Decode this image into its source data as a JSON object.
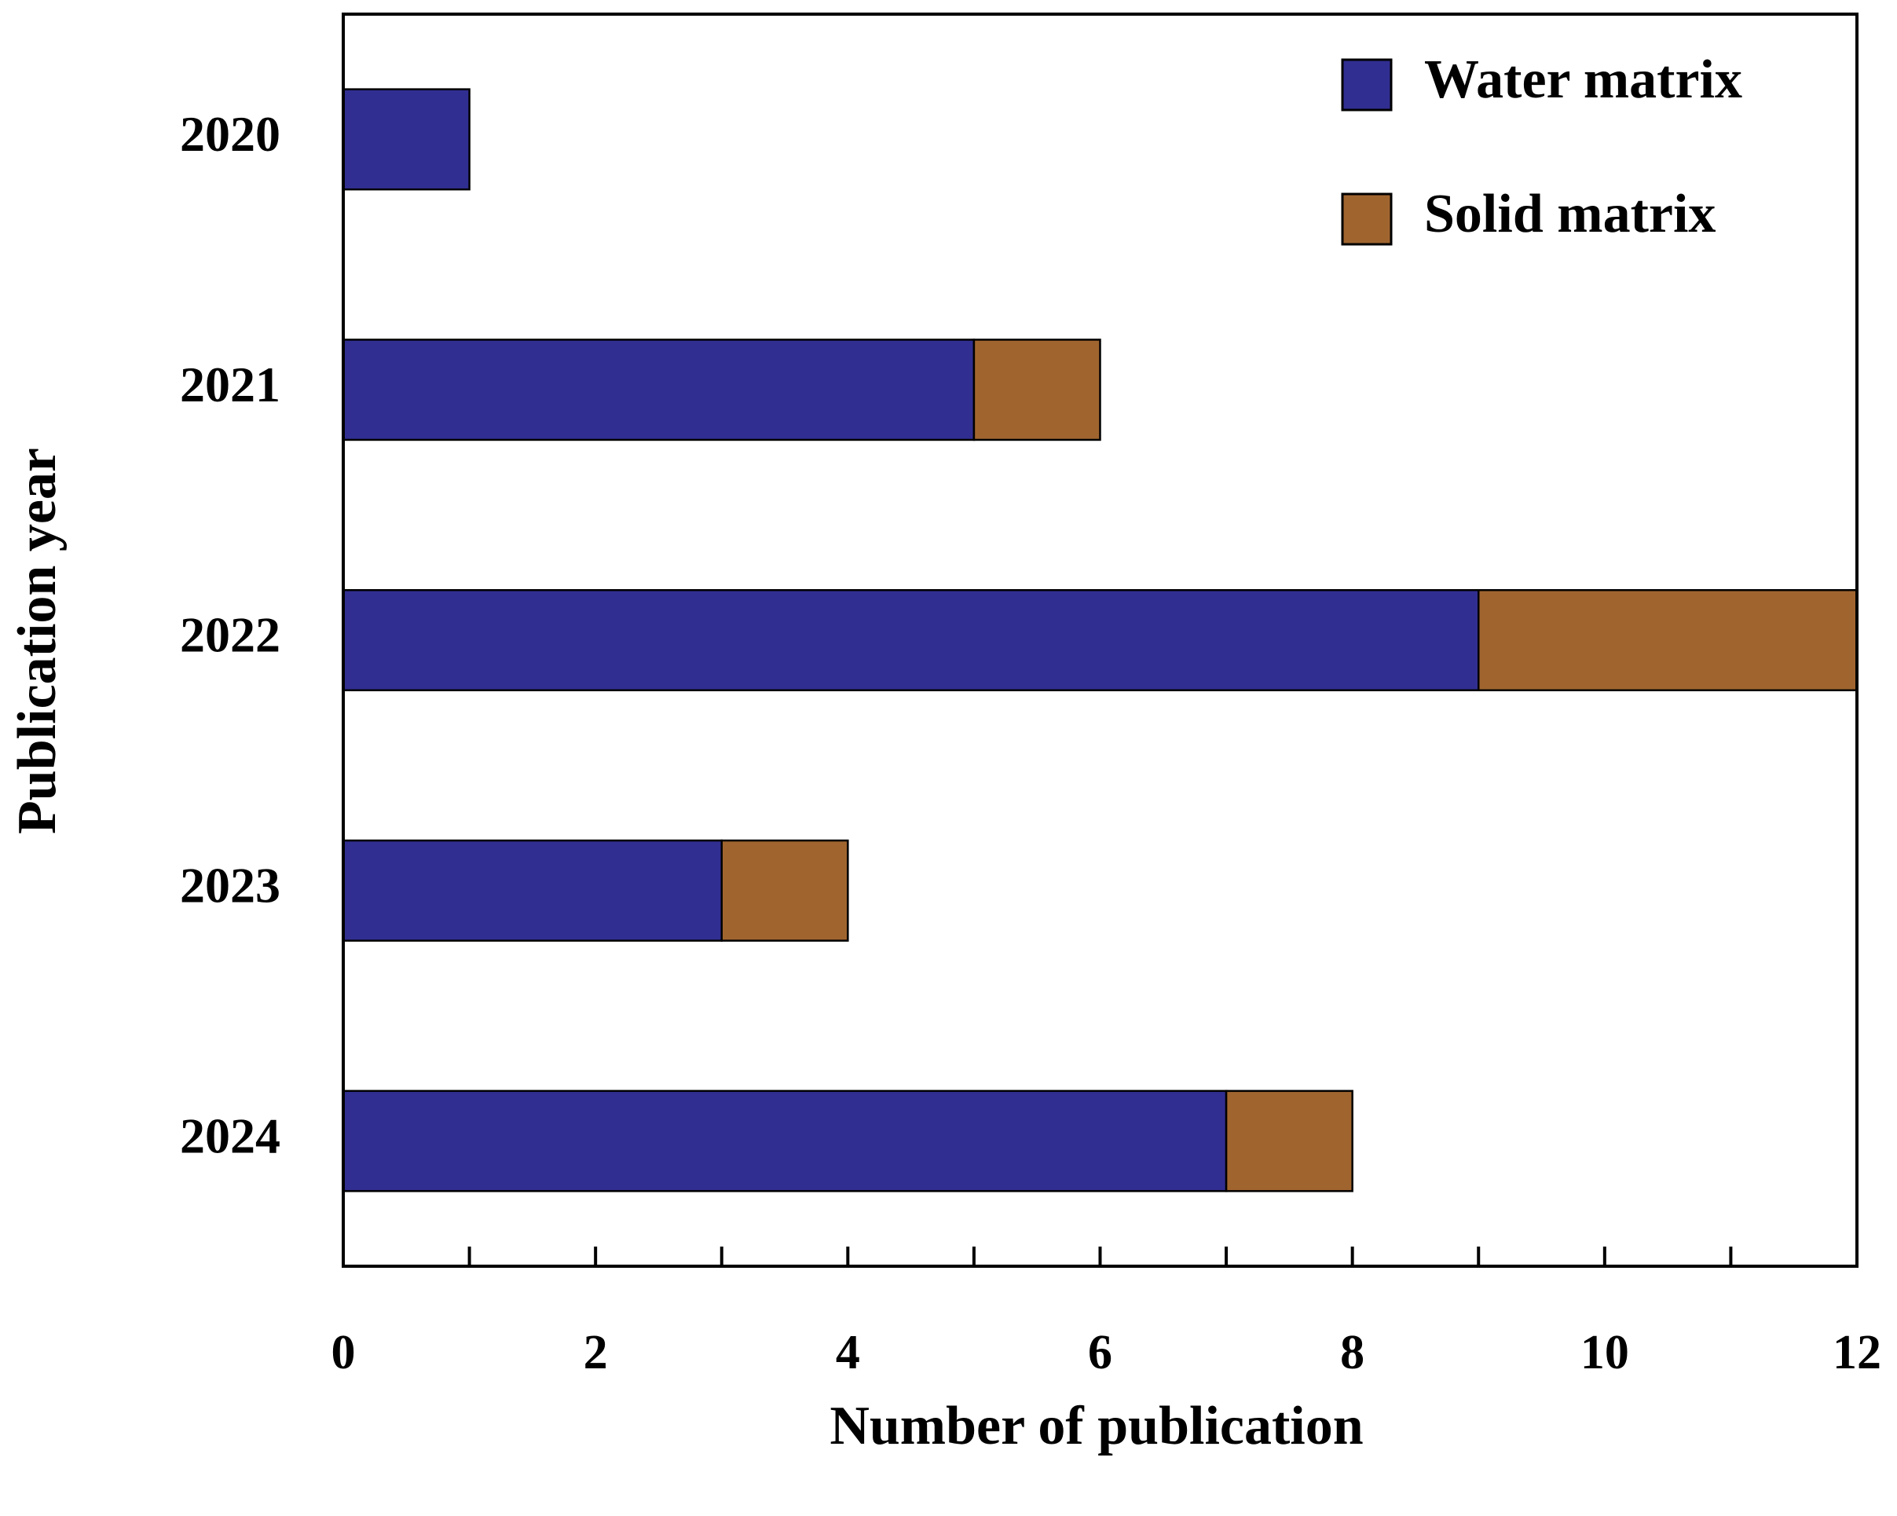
{
  "chart_data": {
    "type": "stacked-barh",
    "xlabel": "Number of publication",
    "ylabel": "Publication year",
    "categories": [
      "2020",
      "2021",
      "2022",
      "2023",
      "2024"
    ],
    "series": [
      {
        "name": "Water matrix",
        "color": "#312e91",
        "values": [
          1,
          5,
          9,
          3,
          7
        ]
      },
      {
        "name": "Solid matrix",
        "color": "#a0652f",
        "values": [
          0,
          1,
          3,
          1,
          1
        ]
      }
    ],
    "xlim": [
      0,
      12
    ],
    "xticks": [
      0,
      2,
      4,
      6,
      8,
      10,
      12
    ],
    "xminorticks": [
      1,
      3,
      5,
      7,
      9,
      11
    ],
    "legend": "upper right"
  }
}
